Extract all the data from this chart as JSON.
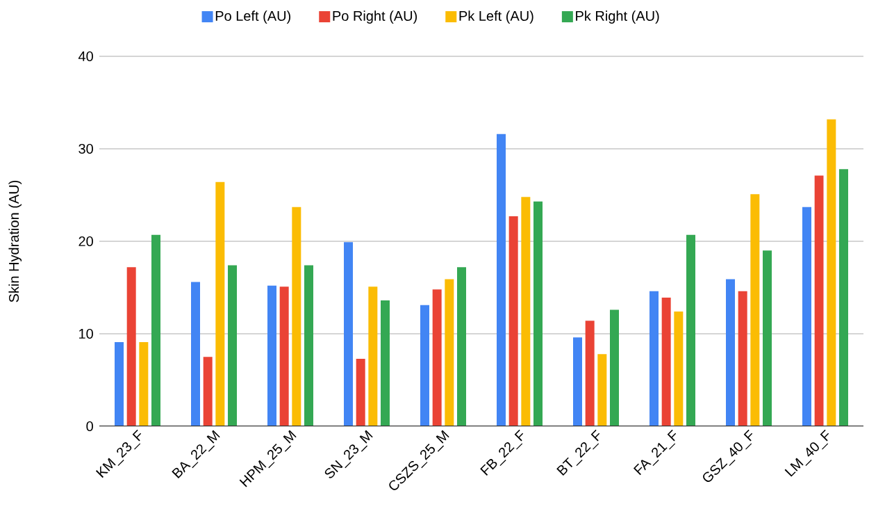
{
  "chart_data": {
    "type": "bar",
    "ylabel": "Skin Hydration (AU)",
    "categories": [
      "KM_23_F",
      "BA_22_M",
      "HPM_25_M",
      "SN_23_M",
      "CSZS_25_M",
      "FB_22_F",
      "BT_22_F",
      "FA_21_F",
      "GSZ_40_F",
      "LM_40_F"
    ],
    "series": [
      {
        "name": "Po Left  (AU)",
        "color": "#4285f4",
        "values": [
          9.1,
          15.6,
          15.2,
          19.9,
          13.1,
          31.6,
          9.6,
          14.6,
          15.9,
          23.7
        ]
      },
      {
        "name": "Po Right  (AU)",
        "color": "#ea4335",
        "values": [
          17.2,
          7.5,
          15.1,
          7.3,
          14.8,
          22.7,
          11.4,
          13.9,
          14.6,
          27.1
        ]
      },
      {
        "name": "Pk Left  (AU)",
        "color": "#fbbc04",
        "values": [
          9.1,
          26.4,
          23.7,
          15.1,
          15.9,
          24.8,
          7.8,
          12.4,
          25.1,
          33.2
        ]
      },
      {
        "name": "Pk Right  (AU)",
        "color": "#34a853",
        "values": [
          20.7,
          17.4,
          17.4,
          13.6,
          17.2,
          24.3,
          12.6,
          20.7,
          19.0,
          27.8
        ]
      }
    ],
    "ylim": [
      0,
      40
    ],
    "yticks": [
      0,
      10,
      20,
      30,
      40
    ],
    "grid": "y",
    "legend": "top"
  }
}
